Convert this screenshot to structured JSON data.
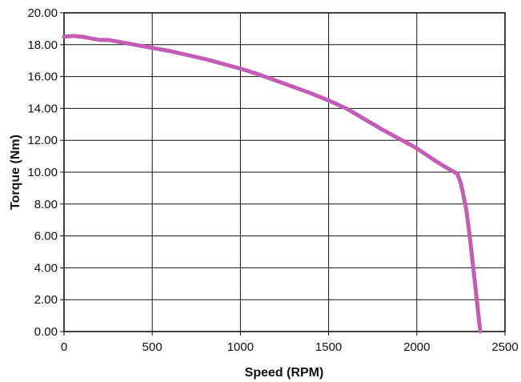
{
  "chart_data": {
    "type": "line",
    "title": "",
    "xlabel": "Speed (RPM)",
    "ylabel": "Torque (Nm)",
    "xlim": [
      0,
      2500
    ],
    "ylim": [
      0,
      20
    ],
    "x_ticks": [
      "0",
      "500",
      "1000",
      "1500",
      "2000",
      "2500"
    ],
    "y_ticks": [
      "0.00",
      "2.00",
      "4.00",
      "6.00",
      "8.00",
      "10.00",
      "12.00",
      "14.00",
      "16.00",
      "18.00",
      "20.00"
    ],
    "grid": true,
    "legend": "none",
    "colors": {
      "line": "#c45cb6",
      "grid": "#111111",
      "axis": "#111111"
    },
    "series": [
      {
        "x": [
          0,
          50,
          100,
          200,
          250,
          300,
          400,
          450,
          500,
          600,
          700,
          800,
          900,
          1000,
          1100,
          1200,
          1300,
          1400,
          1500,
          1600,
          1700,
          1800,
          1900,
          2000,
          2100,
          2150,
          2230,
          2250,
          2280,
          2300,
          2320,
          2340,
          2360
        ],
        "y": [
          18.5,
          18.55,
          18.5,
          18.3,
          18.3,
          18.2,
          18.0,
          17.9,
          17.8,
          17.6,
          17.35,
          17.1,
          16.8,
          16.5,
          16.15,
          15.75,
          15.35,
          14.95,
          14.5,
          14.0,
          13.35,
          12.7,
          12.1,
          11.5,
          10.75,
          10.4,
          9.9,
          9.3,
          7.7,
          6.0,
          4.0,
          2.0,
          0.0
        ]
      }
    ]
  }
}
